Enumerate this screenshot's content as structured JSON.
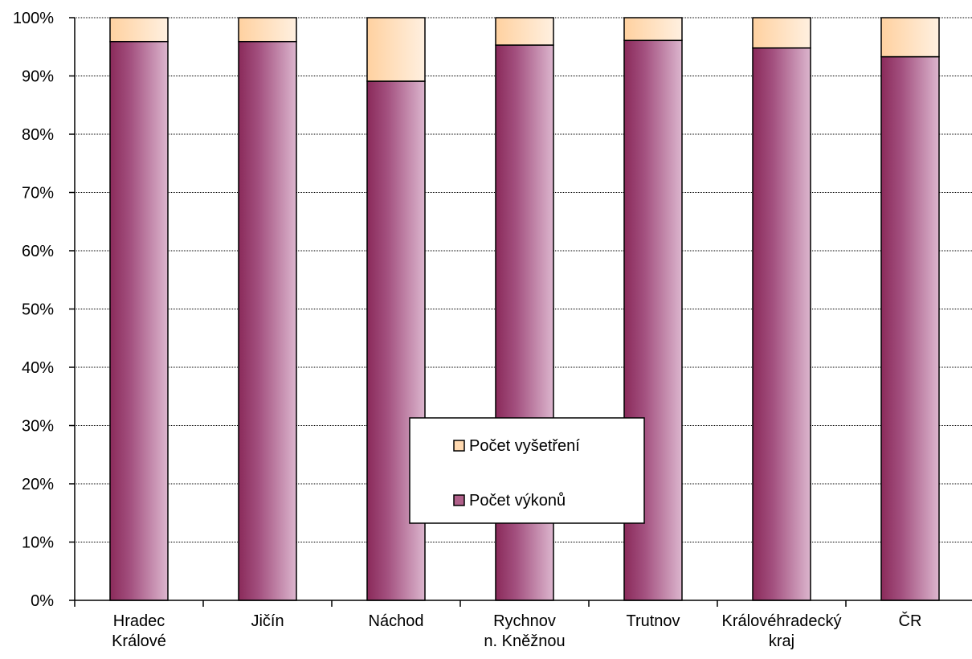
{
  "chart_data": {
    "type": "bar",
    "stacked": true,
    "normalized": true,
    "categories": [
      [
        "Hradec",
        "Králové"
      ],
      [
        "Jičín"
      ],
      [
        "Náchod"
      ],
      [
        "Rychnov",
        "n. Kněžnou"
      ],
      [
        "Trutnov"
      ],
      [
        "Královéhradecký",
        "kraj"
      ],
      [
        "ČR"
      ]
    ],
    "series": [
      {
        "name": "Počet výkonů",
        "values": [
          95.9,
          95.9,
          89.1,
          95.3,
          96.1,
          94.8,
          93.3
        ],
        "color": "#9b3a6a"
      },
      {
        "name": "Počet vyšetření",
        "values": [
          4.1,
          4.1,
          10.9,
          4.7,
          3.9,
          5.2,
          6.7
        ],
        "color": "#ffd9b0"
      }
    ],
    "yticks": [
      "0%",
      "10%",
      "20%",
      "30%",
      "40%",
      "50%",
      "60%",
      "70%",
      "80%",
      "90%",
      "100%"
    ],
    "ylim": [
      0,
      100
    ],
    "grid": true,
    "legend": {
      "placement": "center-bottom",
      "entries": [
        "Počet vyšetření",
        "Počet výkonů"
      ]
    }
  }
}
